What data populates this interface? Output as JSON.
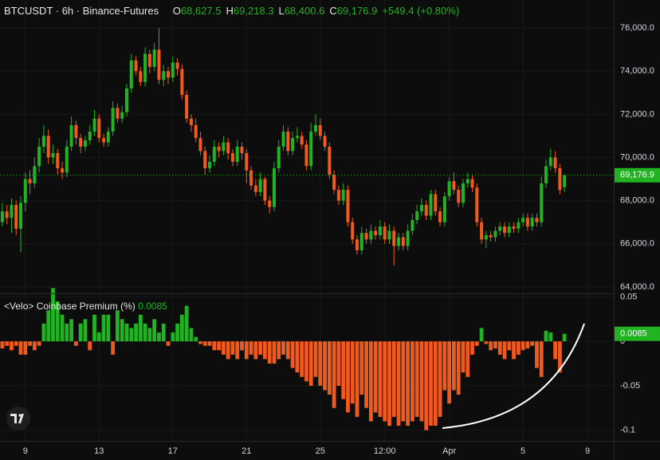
{
  "chart_data": [
    {
      "type": "candlestick",
      "title": "BTCUSDT · 6h · Binance-Futures",
      "legend_values": [
        {
          "label": "O",
          "value": "68,627.5"
        },
        {
          "label": "H",
          "value": "69,218.3"
        },
        {
          "label": "L",
          "value": "68,400.6"
        },
        {
          "label": "C",
          "value": "69,176.9"
        }
      ],
      "change": "+549.4 (+0.80%)",
      "last_price_label": "69,176.9",
      "up_color": "#22b322",
      "down_color": "#f05a1e",
      "xlim": [
        -0.5,
        132.7
      ],
      "xticks": [
        {
          "value": 5,
          "label": "9"
        },
        {
          "value": 21,
          "label": "13"
        },
        {
          "value": 37,
          "label": "17"
        },
        {
          "value": 53,
          "label": "21"
        },
        {
          "value": 69,
          "label": "25"
        },
        {
          "value": 83,
          "label": "12:00"
        },
        {
          "value": 97,
          "label": "Apr"
        },
        {
          "value": 113,
          "label": "5"
        },
        {
          "value": 127,
          "label": "9"
        }
      ],
      "ylim": [
        63700,
        77300
      ],
      "yticks": [
        {
          "value": 64000,
          "label": "64,000.0"
        },
        {
          "value": 66000,
          "label": "66,000.0"
        },
        {
          "value": 68000,
          "label": "68,000.0"
        },
        {
          "value": 70000,
          "label": "70,000.0"
        },
        {
          "value": 72000,
          "label": "72,000.0"
        },
        {
          "value": 74000,
          "label": "74,000.0"
        },
        {
          "value": 76000,
          "label": "76,000.0"
        }
      ],
      "grid": true,
      "ohlc": [
        [
          67000,
          67900,
          66800,
          67500
        ],
        [
          67500,
          67800,
          66900,
          67200
        ],
        [
          67200,
          68100,
          66500,
          67800
        ],
        [
          67800,
          68000,
          66400,
          66700
        ],
        [
          66700,
          68200,
          65600,
          67900
        ],
        [
          67900,
          69300,
          67500,
          69000
        ],
        [
          69000,
          69400,
          68300,
          68800
        ],
        [
          68800,
          70000,
          68600,
          69600
        ],
        [
          69600,
          70900,
          69300,
          70500
        ],
        [
          70500,
          71500,
          70200,
          71000
        ],
        [
          71000,
          71300,
          69700,
          70000
        ],
        [
          70000,
          70600,
          69700,
          70200
        ],
        [
          70200,
          70400,
          69200,
          69500
        ],
        [
          69500,
          69800,
          69000,
          69300
        ],
        [
          69300,
          70800,
          69100,
          70500
        ],
        [
          70500,
          71900,
          70300,
          71500
        ],
        [
          71500,
          71700,
          70600,
          70900
        ],
        [
          70900,
          71100,
          70200,
          70500
        ],
        [
          70500,
          71000,
          70300,
          70800
        ],
        [
          70800,
          71500,
          70600,
          71200
        ],
        [
          71200,
          72200,
          71000,
          71800
        ],
        [
          71800,
          72000,
          70700,
          70900
        ],
        [
          70900,
          71100,
          70500,
          70700
        ],
        [
          70700,
          71400,
          70500,
          71200
        ],
        [
          71200,
          72600,
          71000,
          72300
        ],
        [
          72300,
          72500,
          71600,
          71800
        ],
        [
          71800,
          72400,
          71600,
          72100
        ],
        [
          72100,
          73400,
          71900,
          73200
        ],
        [
          73200,
          74800,
          73000,
          74500
        ],
        [
          74500,
          74700,
          73800,
          74000
        ],
        [
          74000,
          74200,
          73300,
          73500
        ],
        [
          73500,
          75100,
          73300,
          74800
        ],
        [
          74800,
          75000,
          73900,
          74200
        ],
        [
          74200,
          75300,
          74000,
          75000
        ],
        [
          75000,
          76000,
          73400,
          73600
        ],
        [
          73600,
          74300,
          73300,
          74000
        ],
        [
          74000,
          74200,
          73400,
          73700
        ],
        [
          73700,
          74700,
          73500,
          74400
        ],
        [
          74400,
          74600,
          73800,
          74100
        ],
        [
          74100,
          74300,
          72700,
          72900
        ],
        [
          72900,
          73100,
          71600,
          71800
        ],
        [
          71800,
          72000,
          71200,
          71500
        ],
        [
          71500,
          71800,
          70700,
          70900
        ],
        [
          70900,
          71200,
          70100,
          70300
        ],
        [
          70300,
          70500,
          69200,
          69500
        ],
        [
          69500,
          70100,
          69300,
          69800
        ],
        [
          69800,
          70800,
          69600,
          70500
        ],
        [
          70500,
          70700,
          70000,
          70300
        ],
        [
          70300,
          71000,
          70100,
          70700
        ],
        [
          70700,
          70900,
          69900,
          70200
        ],
        [
          70200,
          70400,
          69600,
          69800
        ],
        [
          69800,
          70800,
          69600,
          70500
        ],
        [
          70500,
          70700,
          69900,
          70200
        ],
        [
          70200,
          70400,
          68800,
          69400
        ],
        [
          69400,
          69600,
          68500,
          68700
        ],
        [
          68700,
          69000,
          68200,
          68400
        ],
        [
          68400,
          69300,
          68200,
          69000
        ],
        [
          69000,
          69100,
          67800,
          68000
        ],
        [
          68000,
          68200,
          67400,
          67700
        ],
        [
          67700,
          69800,
          67500,
          69500
        ],
        [
          69500,
          70800,
          69300,
          70500
        ],
        [
          70500,
          71500,
          70300,
          71200
        ],
        [
          71200,
          71400,
          70100,
          70300
        ],
        [
          70300,
          71200,
          70100,
          70900
        ],
        [
          70900,
          71400,
          70700,
          71000
        ],
        [
          71000,
          71200,
          70400,
          70600
        ],
        [
          70600,
          70800,
          69400,
          69600
        ],
        [
          69600,
          71600,
          69400,
          71200
        ],
        [
          71200,
          72000,
          71000,
          71500
        ],
        [
          71500,
          71800,
          70800,
          71000
        ],
        [
          71000,
          71200,
          70300,
          70500
        ],
        [
          70500,
          70700,
          69000,
          69200
        ],
        [
          69200,
          69400,
          68300,
          68500
        ],
        [
          68500,
          68700,
          67800,
          68000
        ],
        [
          68000,
          68800,
          67800,
          68500
        ],
        [
          68500,
          68700,
          66800,
          67000
        ],
        [
          67000,
          67200,
          66000,
          66200
        ],
        [
          66200,
          66400,
          65500,
          65700
        ],
        [
          65700,
          66800,
          65500,
          66500
        ],
        [
          66500,
          66700,
          66000,
          66200
        ],
        [
          66200,
          66900,
          66000,
          66600
        ],
        [
          66600,
          66800,
          66200,
          66400
        ],
        [
          66400,
          67100,
          66200,
          66800
        ],
        [
          66800,
          67000,
          66000,
          66200
        ],
        [
          66200,
          66900,
          66000,
          66600
        ],
        [
          66600,
          66800,
          65000,
          65900
        ],
        [
          65900,
          66500,
          65700,
          66300
        ],
        [
          66300,
          66500,
          65700,
          65900
        ],
        [
          65900,
          66900,
          65700,
          66600
        ],
        [
          66600,
          67400,
          66400,
          67100
        ],
        [
          67100,
          67800,
          66900,
          67500
        ],
        [
          67500,
          68100,
          67300,
          67800
        ],
        [
          67800,
          68000,
          67100,
          67300
        ],
        [
          67300,
          68500,
          67100,
          68300
        ],
        [
          68300,
          68500,
          67300,
          67500
        ],
        [
          67500,
          67700,
          66800,
          67000
        ],
        [
          67000,
          68400,
          66800,
          68200
        ],
        [
          68200,
          69100,
          68000,
          68900
        ],
        [
          68900,
          69300,
          68300,
          68500
        ],
        [
          68500,
          68700,
          67700,
          67900
        ],
        [
          67900,
          69000,
          67700,
          68800
        ],
        [
          68800,
          69300,
          68600,
          69000
        ],
        [
          69000,
          69200,
          68400,
          68600
        ],
        [
          68600,
          68800,
          66800,
          67000
        ],
        [
          67000,
          67200,
          66000,
          66200
        ],
        [
          66200,
          66600,
          65800,
          66400
        ],
        [
          66400,
          66600,
          66100,
          66300
        ],
        [
          66300,
          66800,
          66100,
          66600
        ],
        [
          66600,
          67000,
          66400,
          66800
        ],
        [
          66800,
          67000,
          66300,
          66500
        ],
        [
          66500,
          67000,
          66300,
          66800
        ],
        [
          66800,
          67000,
          66500,
          66700
        ],
        [
          66700,
          67200,
          66500,
          67000
        ],
        [
          67000,
          67400,
          66800,
          67200
        ],
        [
          67200,
          67400,
          66600,
          66800
        ],
        [
          66800,
          67400,
          66600,
          67200
        ],
        [
          67200,
          67400,
          66800,
          67000
        ],
        [
          67000,
          69100,
          66800,
          68800
        ],
        [
          68800,
          69900,
          68600,
          69600
        ],
        [
          69600,
          70400,
          69400,
          70000
        ],
        [
          70000,
          70300,
          69300,
          69500
        ],
        [
          69500,
          69700,
          68300,
          68500
        ],
        [
          68627.5,
          69218.3,
          68400.6,
          69176.9
        ]
      ]
    },
    {
      "type": "bar",
      "title": "<Velo> Coinbase Premium (%)",
      "up_color": "#22b322",
      "down_color": "#f05a1e",
      "ylim": [
        -0.112,
        0.054
      ],
      "yticks": [
        0.05,
        0,
        -0.05,
        -0.1
      ],
      "grid": true,
      "values": [
        -0.008,
        -0.005,
        -0.01,
        -0.005,
        -0.015,
        -0.015,
        -0.005,
        -0.01,
        -0.005,
        0.02,
        0.035,
        0.06,
        0.045,
        0.03,
        0.02,
        0.025,
        -0.005,
        0.02,
        0.025,
        -0.01,
        0.03,
        0.01,
        0.03,
        0.03,
        -0.015,
        0.035,
        0.025,
        0.02,
        0.015,
        0.02,
        0.03,
        0.02,
        0.015,
        0.025,
        0.01,
        0.02,
        -0.005,
        0.01,
        0.02,
        0.03,
        0.04,
        0.015,
        0.005,
        -0.003,
        -0.005,
        -0.005,
        -0.01,
        -0.01,
        -0.015,
        -0.02,
        -0.015,
        -0.02,
        -0.01,
        -0.02,
        -0.015,
        -0.02,
        -0.015,
        -0.02,
        -0.025,
        -0.025,
        -0.02,
        -0.015,
        -0.02,
        -0.03,
        -0.035,
        -0.04,
        -0.045,
        -0.05,
        -0.04,
        -0.05,
        -0.055,
        -0.06,
        -0.075,
        -0.05,
        -0.065,
        -0.08,
        -0.07,
        -0.085,
        -0.06,
        -0.075,
        -0.09,
        -0.08,
        -0.085,
        -0.09,
        -0.095,
        -0.085,
        -0.095,
        -0.09,
        -0.095,
        -0.09,
        -0.085,
        -0.09,
        -0.1,
        -0.095,
        -0.095,
        -0.085,
        -0.055,
        -0.07,
        -0.055,
        -0.06,
        -0.035,
        -0.04,
        -0.015,
        -0.005,
        0.015,
        -0.003,
        -0.01,
        -0.008,
        -0.015,
        -0.02,
        -0.01,
        -0.02,
        -0.015,
        -0.01,
        -0.008,
        -0.005,
        -0.03,
        -0.04,
        0.012,
        0.01,
        -0.02,
        -0.035,
        0.0085
      ]
    }
  ]
}
